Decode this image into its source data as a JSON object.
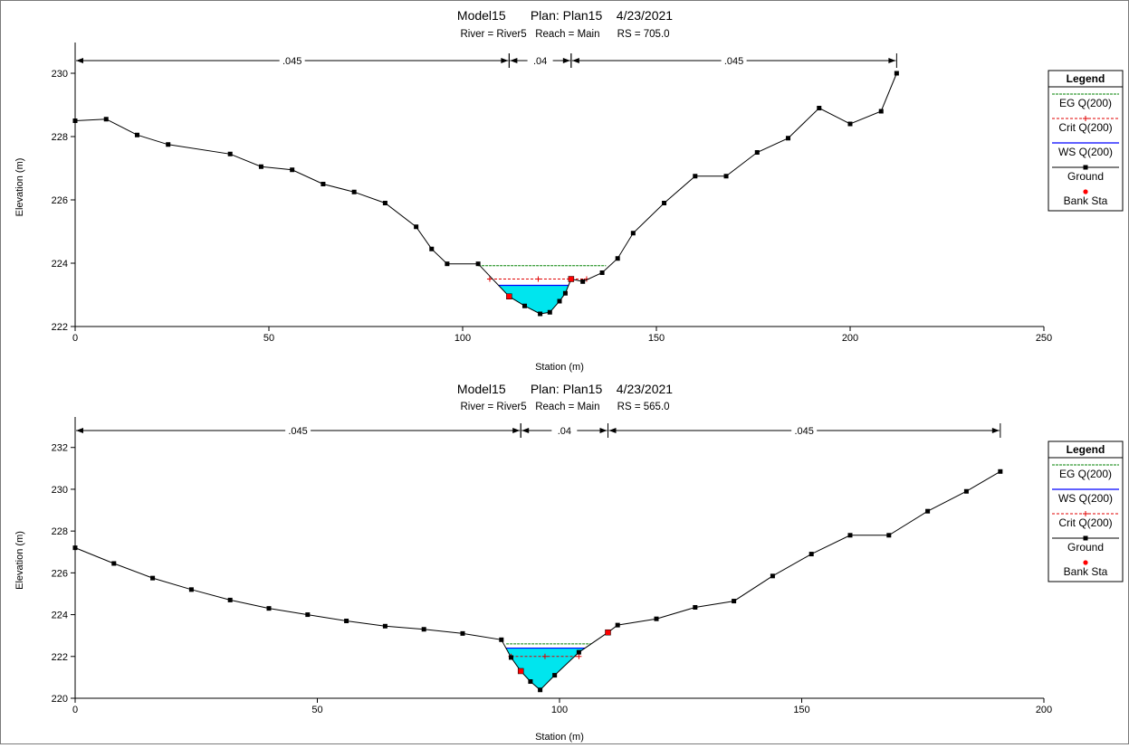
{
  "colors": {
    "water_fill": "#00e5ee",
    "eg_line": "#008000",
    "crit_line": "#e00000",
    "ws_line": "#0000ff",
    "ground": "#000000",
    "bank": "#ff0000"
  },
  "chart_data": [
    {
      "type": "line",
      "title": "Model15       Plan: Plan15    4/23/2021",
      "subtitle": "River = River5   Reach = Main      RS = 705.0",
      "xlabel": "Station (m)",
      "ylabel": "Elevation (m)",
      "xlim": [
        0,
        250
      ],
      "ylim": [
        222,
        230.8
      ],
      "xticks": [
        0,
        50,
        100,
        150,
        200,
        250
      ],
      "yticks": [
        222,
        224,
        226,
        228,
        230
      ],
      "grid": false,
      "legend_position": "right",
      "legend_title": "Legend",
      "legend": [
        {
          "label": "EG Q(200)",
          "kind": "eg"
        },
        {
          "label": "Crit Q(200)",
          "kind": "crit"
        },
        {
          "label": "WS Q(200)",
          "kind": "ws"
        },
        {
          "label": "Ground",
          "kind": "ground"
        },
        {
          "label": "Bank Sta",
          "kind": "bank"
        }
      ],
      "mannings": [
        {
          "from": 0,
          "to": 112,
          "label": ".045"
        },
        {
          "from": 112,
          "to": 128,
          "label": ".04"
        },
        {
          "from": 128,
          "to": 212,
          "label": ".045"
        }
      ],
      "ground": [
        [
          0,
          228.5
        ],
        [
          8,
          228.55
        ],
        [
          16,
          228.05
        ],
        [
          24,
          227.75
        ],
        [
          40,
          227.45
        ],
        [
          48,
          227.05
        ],
        [
          56,
          226.95
        ],
        [
          64,
          226.5
        ],
        [
          72,
          226.25
        ],
        [
          80,
          225.9
        ],
        [
          88,
          225.15
        ],
        [
          92,
          224.45
        ],
        [
          96,
          223.98
        ],
        [
          104,
          223.98
        ],
        [
          112,
          222.95
        ],
        [
          116,
          222.65
        ],
        [
          120,
          222.4
        ],
        [
          122.5,
          222.45
        ],
        [
          125,
          222.8
        ],
        [
          126.5,
          223.05
        ],
        [
          128,
          223.5
        ],
        [
          131,
          223.42
        ],
        [
          136,
          223.7
        ],
        [
          140,
          224.15
        ],
        [
          144,
          224.95
        ],
        [
          152,
          225.9
        ],
        [
          160,
          226.75
        ],
        [
          168,
          226.75
        ],
        [
          176,
          227.5
        ],
        [
          184,
          227.95
        ],
        [
          192,
          228.9
        ],
        [
          200,
          228.4
        ],
        [
          208,
          228.8
        ],
        [
          212,
          230.0
        ]
      ],
      "bank_stations": [
        [
          112,
          222.95
        ],
        [
          128,
          223.5
        ]
      ],
      "ws_elevation": 223.3,
      "crit_elevation": 223.5,
      "crit_extent": [
        107,
        132
      ],
      "eg_elevation": 223.92,
      "eg_extent": [
        104,
        137
      ]
    },
    {
      "type": "line",
      "title": "Model15       Plan: Plan15    4/23/2021",
      "subtitle": "River = River5   Reach = Main      RS = 565.0",
      "xlabel": "Station (m)",
      "ylabel": "Elevation (m)",
      "xlim": [
        0,
        200
      ],
      "ylim": [
        220,
        233.2
      ],
      "xticks": [
        0,
        50,
        100,
        150,
        200
      ],
      "yticks": [
        220,
        222,
        224,
        226,
        228,
        230,
        232
      ],
      "grid": false,
      "legend_position": "right",
      "legend_title": "Legend",
      "legend": [
        {
          "label": "EG Q(200)",
          "kind": "eg"
        },
        {
          "label": "WS Q(200)",
          "kind": "ws"
        },
        {
          "label": "Crit Q(200)",
          "kind": "crit"
        },
        {
          "label": "Ground",
          "kind": "ground"
        },
        {
          "label": "Bank Sta",
          "kind": "bank"
        }
      ],
      "mannings": [
        {
          "from": 0,
          "to": 92,
          "label": ".045"
        },
        {
          "from": 92,
          "to": 110,
          "label": ".04"
        },
        {
          "from": 110,
          "to": 191,
          "label": ".045"
        }
      ],
      "ground": [
        [
          0,
          227.2
        ],
        [
          8,
          226.45
        ],
        [
          16,
          225.75
        ],
        [
          24,
          225.2
        ],
        [
          32,
          224.7
        ],
        [
          40,
          224.3
        ],
        [
          48,
          224.0
        ],
        [
          56,
          223.7
        ],
        [
          64,
          223.45
        ],
        [
          72,
          223.3
        ],
        [
          80,
          223.1
        ],
        [
          88,
          222.8
        ],
        [
          90,
          221.95
        ],
        [
          92,
          221.3
        ],
        [
          94,
          220.8
        ],
        [
          96,
          220.4
        ],
        [
          99,
          221.1
        ],
        [
          104,
          222.2
        ],
        [
          110,
          223.15
        ],
        [
          112,
          223.5
        ],
        [
          120,
          223.8
        ],
        [
          128,
          224.35
        ],
        [
          136,
          224.65
        ],
        [
          144,
          225.85
        ],
        [
          152,
          226.9
        ],
        [
          160,
          227.8
        ],
        [
          168,
          227.8
        ],
        [
          176,
          228.95
        ],
        [
          184,
          229.9
        ],
        [
          191,
          230.85
        ]
      ],
      "bank_stations": [
        [
          92,
          221.3
        ],
        [
          110,
          223.15
        ]
      ],
      "ws_elevation": 222.4,
      "crit_elevation": 222.0,
      "crit_extent": [
        90,
        104
      ],
      "eg_elevation": 222.6,
      "eg_extent": [
        89,
        106.5
      ]
    }
  ]
}
